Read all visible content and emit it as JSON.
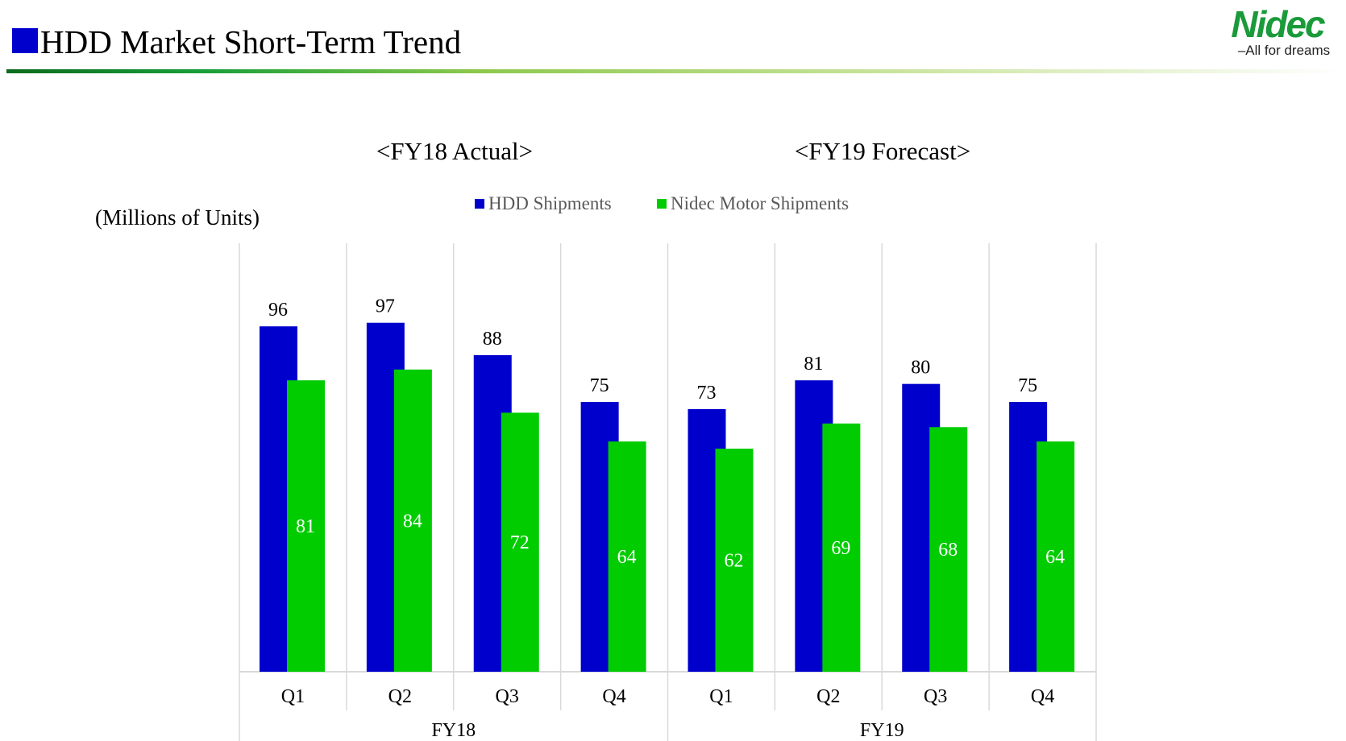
{
  "header": {
    "title": "HDD Market Short-Term Trend",
    "logo_text": "Nidec",
    "logo_tagline": "All for dreams"
  },
  "colors": {
    "hdd": "#0000CC",
    "nidec": "#00CC00",
    "grid": "#D9D9D9",
    "logo": "#1A9A3A"
  },
  "chart_data": {
    "type": "bar",
    "subtitles": [
      "<FY18 Actual>",
      "<FY19 Forecast>"
    ],
    "ylabel": "(Millions of Units)",
    "categories": [
      "Q1",
      "Q2",
      "Q3",
      "Q4",
      "Q1",
      "Q2",
      "Q3",
      "Q4"
    ],
    "groups": [
      "FY18",
      "FY19"
    ],
    "series": [
      {
        "name": "HDD Shipments",
        "values": [
          96,
          97,
          88,
          75,
          73,
          81,
          80,
          75
        ]
      },
      {
        "name": "Nidec Motor Shipments",
        "values": [
          81,
          84,
          72,
          64,
          62,
          69,
          68,
          64
        ]
      }
    ],
    "ylim": [
      0,
      120
    ],
    "legend": "top",
    "grid": "vertical category separators"
  }
}
